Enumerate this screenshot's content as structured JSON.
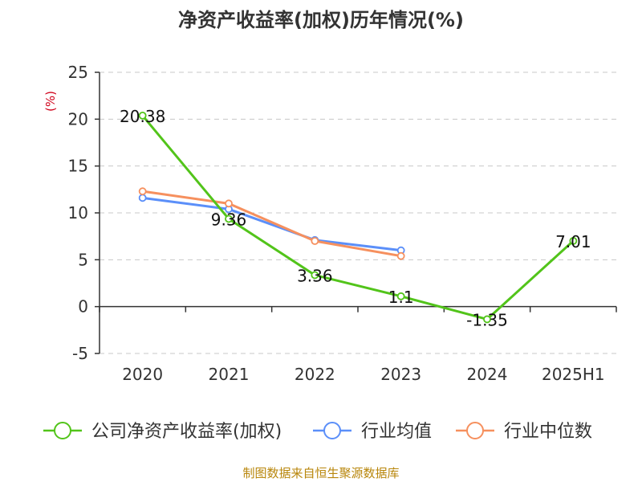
{
  "chart_data": {
    "type": "line",
    "title": "净资产收益率(加权)历年情况(%)",
    "ylabel": "(%)",
    "xlabel": "",
    "categories": [
      "2020",
      "2021",
      "2022",
      "2023",
      "2024",
      "2025H1"
    ],
    "y_ticks": [
      "25",
      "20",
      "15",
      "10",
      "5",
      "0",
      "-5"
    ],
    "ylim": [
      -5,
      25
    ],
    "grid": true,
    "legend_position": "bottom",
    "series": [
      {
        "name": "公司净资产收益率(加权)",
        "color": "#52c41a",
        "values": [
          20.38,
          9.36,
          3.36,
          1.1,
          -1.35,
          7.01
        ],
        "labels": [
          "20.38",
          "9.36",
          "3.36",
          "1.1",
          "-1.35",
          "7.01"
        ]
      },
      {
        "name": "行业均值",
        "color": "#5b8ff9",
        "values": [
          11.6,
          10.4,
          7.1,
          6.0,
          null,
          null
        ]
      },
      {
        "name": "行业中位数",
        "color": "#f6905e",
        "values": [
          12.3,
          11.0,
          7.0,
          5.4,
          null,
          null
        ]
      }
    ]
  },
  "source": "制图数据来自恒生聚源数据库"
}
